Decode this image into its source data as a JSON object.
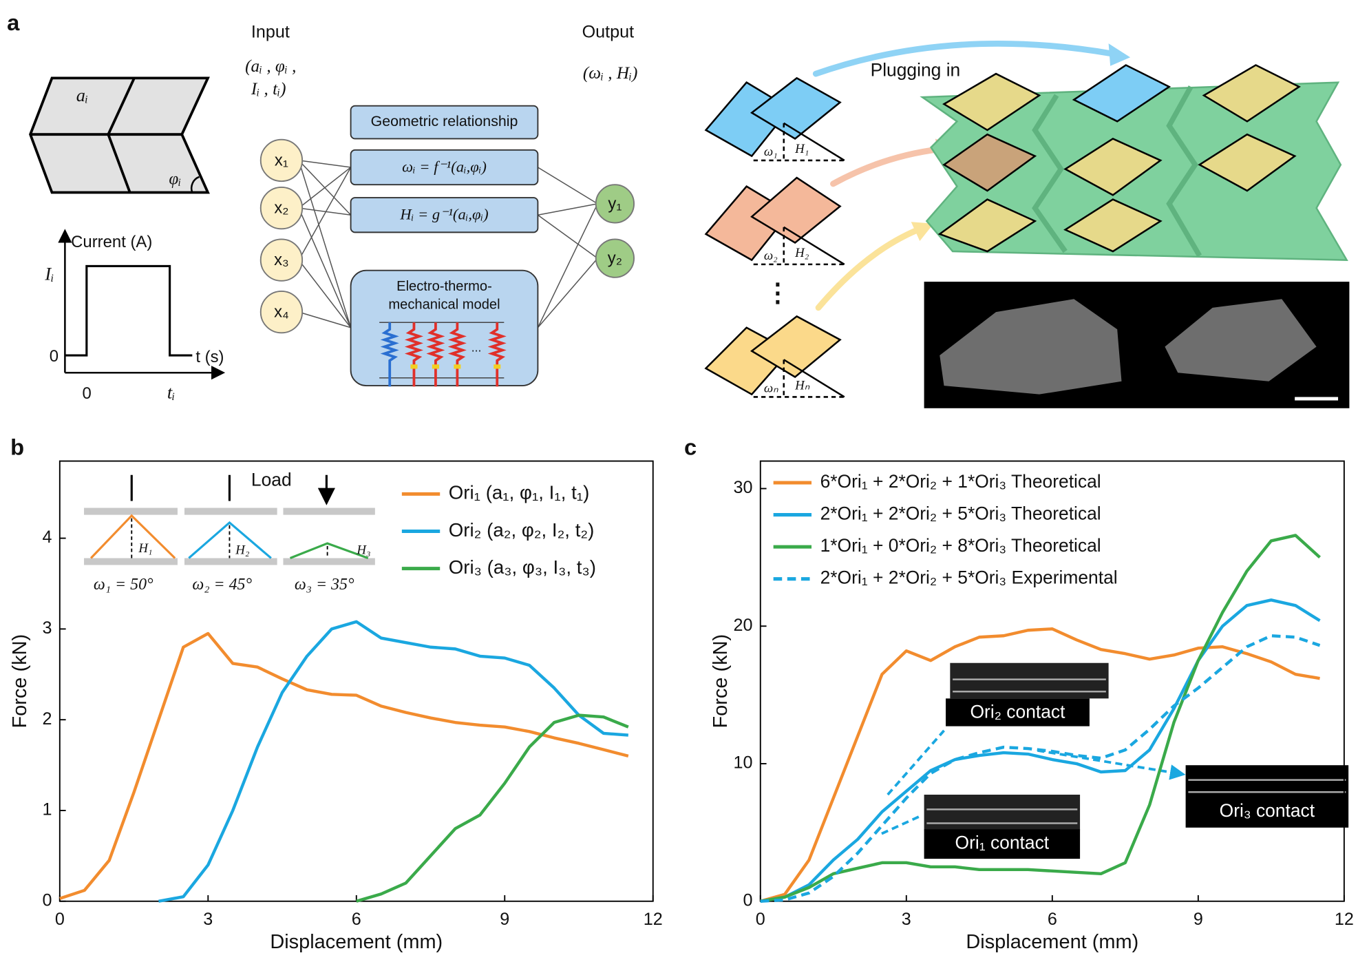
{
  "panel_a": {
    "label": "a",
    "shape_side": "aᵢ",
    "shape_angle": "φᵢ",
    "pulse": {
      "y_axis": "Current (A)",
      "x_axis": "t (s)",
      "level": "Iᵢ",
      "y_zero": "0",
      "x_zero": "0",
      "x_end": "tᵢ"
    },
    "input": {
      "title": "Input",
      "line1": "(aᵢ , φᵢ ,",
      "line2": "Iᵢ , tᵢ)"
    },
    "output": {
      "title": "Output",
      "line1": "(ωᵢ , Hᵢ)"
    },
    "nodes_in": [
      "x₁",
      "x₂",
      "x₃",
      "x₄"
    ],
    "nodes_out": [
      "y₁",
      "y₂"
    ],
    "boxes": [
      "Geometric relationship",
      "ωᵢ = f⁻¹(aᵢ,φᵢ)",
      "Hᵢ = g⁻¹(aᵢ,φᵢ)"
    ],
    "model": {
      "line1": "Electro-thermo-",
      "line2": "mechanical model",
      "dots": "..."
    },
    "units": [
      {
        "angle": "ω₁",
        "height": "H₁"
      },
      {
        "angle": "ω₂",
        "height": "H₂"
      },
      {
        "angle": "ωₙ",
        "height": "Hₙ"
      }
    ],
    "ellipsis": "⋮",
    "assembly": "Plugging in"
  },
  "chart_data": [
    {
      "type": "line",
      "panel_label": "b",
      "x_label": "Displacement (mm)",
      "y_label": "Force (kN)",
      "xlim": [
        0,
        12
      ],
      "xticks": [
        0,
        3,
        6,
        9,
        12
      ],
      "ylim": [
        0,
        4.85
      ],
      "yticks": [
        0,
        1,
        2,
        3,
        4
      ],
      "legend": "upper right",
      "x": [
        0,
        0.5,
        1,
        1.5,
        2,
        2.5,
        3,
        3.5,
        4,
        4.5,
        5,
        5.5,
        6,
        6.5,
        7,
        7.5,
        8,
        8.5,
        9,
        9.5,
        10,
        10.5,
        11,
        11.5
      ],
      "series": [
        {
          "name": "Ori₁ (a₁, φ₁, I₁, t₁)",
          "color": "#f28c2e",
          "style": "solid",
          "values": [
            0.03,
            0.12,
            0.45,
            1.2,
            2.0,
            2.8,
            2.95,
            2.62,
            2.58,
            2.45,
            2.33,
            2.28,
            2.27,
            2.15,
            2.08,
            2.02,
            1.97,
            1.94,
            1.92,
            1.87,
            1.8,
            1.74,
            1.67,
            1.6
          ]
        },
        {
          "name": "Ori₂ (a₂, φ₂, I₂, t₂)",
          "color": "#1aa7e0",
          "style": "solid",
          "values": [
            null,
            null,
            null,
            null,
            0.0,
            0.05,
            0.4,
            1.0,
            1.7,
            2.3,
            2.7,
            3.0,
            3.08,
            2.9,
            2.85,
            2.8,
            2.78,
            2.7,
            2.68,
            2.6,
            2.35,
            2.05,
            1.85,
            1.83
          ]
        },
        {
          "name": "Ori₃ (a₃, φ₃, I₃, t₃)",
          "color": "#3aaa4a",
          "style": "solid",
          "values": [
            null,
            null,
            null,
            null,
            null,
            null,
            null,
            null,
            null,
            null,
            null,
            null,
            0.0,
            0.08,
            0.2,
            0.5,
            0.8,
            0.95,
            1.3,
            1.7,
            1.97,
            2.05,
            2.03,
            1.92
          ]
        }
      ],
      "inset": {
        "load": "Load",
        "heights": [
          "H₁",
          "H₂",
          "H₃"
        ],
        "angles": [
          "ω₁ = 50°",
          "ω₂ = 45°",
          "ω₃ = 35°"
        ]
      }
    },
    {
      "type": "line",
      "panel_label": "c",
      "x_label": "Displacement (mm)",
      "y_label": "Force (kN)",
      "xlim": [
        0,
        12
      ],
      "xticks": [
        0,
        3,
        6,
        9,
        12
      ],
      "ylim": [
        0,
        32
      ],
      "yticks": [
        0,
        10,
        20,
        30
      ],
      "legend": "upper left",
      "x": [
        0,
        0.5,
        1,
        1.5,
        2,
        2.5,
        3,
        3.5,
        4,
        4.5,
        5,
        5.5,
        6,
        6.5,
        7,
        7.5,
        8,
        8.5,
        9,
        9.5,
        10,
        10.5,
        11,
        11.5
      ],
      "series": [
        {
          "name": "6*Ori₁ + 2*Ori₂ + 1*Ori₃ Theoretical",
          "color": "#f28c2e",
          "style": "solid",
          "values": [
            0,
            0.5,
            3,
            7.5,
            12,
            16.5,
            18.2,
            17.5,
            18.5,
            19.2,
            19.3,
            19.7,
            19.8,
            19.0,
            18.3,
            18.0,
            17.6,
            17.9,
            18.4,
            18.5,
            18.0,
            17.4,
            16.5,
            16.2
          ]
        },
        {
          "name": "2*Ori₁ + 2*Ori₂ + 5*Ori₃ Theoretical",
          "color": "#1aa7e0",
          "style": "solid",
          "values": [
            0,
            0.3,
            1.2,
            3.0,
            4.5,
            6.5,
            8.0,
            9.5,
            10.3,
            10.6,
            10.8,
            10.7,
            10.3,
            10.0,
            9.4,
            9.5,
            11.0,
            14,
            17.5,
            20,
            21.5,
            21.9,
            21.5,
            20.4
          ]
        },
        {
          "name": "1*Ori₁ + 0*Ori₂ + 8*Ori₃ Theoretical",
          "color": "#3aaa4a",
          "style": "solid",
          "values": [
            0,
            0.3,
            1.0,
            2.0,
            2.4,
            2.8,
            2.8,
            2.5,
            2.5,
            2.3,
            2.3,
            2.3,
            2.2,
            2.1,
            2.0,
            2.8,
            7,
            13,
            17.5,
            21,
            24,
            26.2,
            26.6,
            25
          ]
        },
        {
          "name": "2*Ori₁ + 2*Ori₂ + 5*Ori₃ Experimental",
          "color": "#1aa7e0",
          "style": "dashed",
          "values": [
            0,
            0.1,
            0.6,
            1.8,
            3.5,
            5.5,
            7.5,
            9.3,
            10.3,
            10.8,
            11.2,
            11.1,
            10.9,
            10.6,
            10.4,
            11.0,
            12.5,
            14.2,
            15.5,
            17,
            18.5,
            19.3,
            19.2,
            18.6
          ]
        }
      ],
      "annotations": [
        "Ori₂ contact",
        "Ori₁ contact",
        "Ori₃ contact"
      ]
    }
  ]
}
